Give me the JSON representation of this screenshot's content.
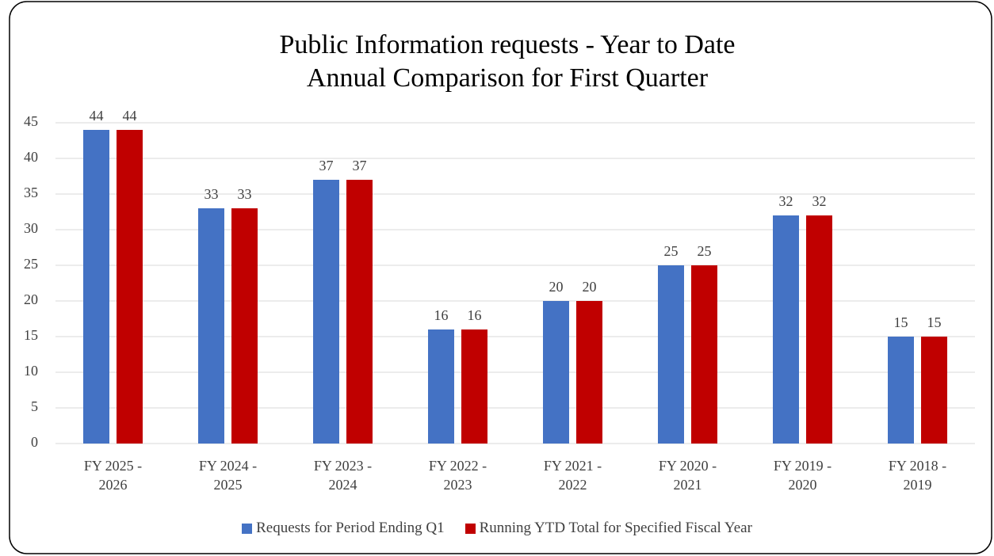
{
  "chart_data": {
    "type": "bar",
    "title": "Public Information requests -  Year to Date Annual Comparison for First Quarter",
    "categories": [
      "FY 2025 - 2026",
      "FY 2024 - 2025",
      "FY 2023 - 2024",
      "FY 2022 - 2023",
      "FY 2021 - 2022",
      "FY 2020 - 2021",
      "FY 2019 - 2020",
      "FY 2018 - 2019"
    ],
    "series": [
      {
        "name": "Requests for Period Ending Q1",
        "color": "#4472c4",
        "values": [
          44,
          33,
          37,
          16,
          20,
          25,
          32,
          15
        ]
      },
      {
        "name": "Running YTD Total for Specified Fiscal Year",
        "color": "#c00000",
        "values": [
          44,
          33,
          37,
          16,
          20,
          25,
          32,
          15
        ]
      }
    ],
    "ylim": [
      0,
      45
    ],
    "yticks": [
      0,
      5,
      10,
      15,
      20,
      25,
      30,
      35,
      40,
      45
    ],
    "grid": true,
    "legend": "bottom"
  }
}
